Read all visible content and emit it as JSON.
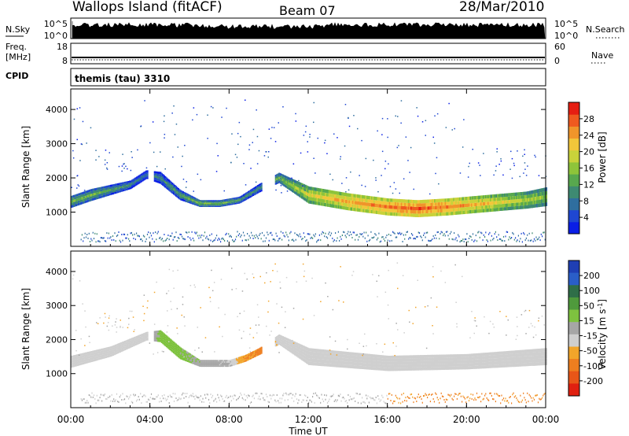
{
  "header": {
    "station": "Wallops Island (fitACF)",
    "beam": "Beam 07",
    "date": "28/Mar/2010"
  },
  "top_panels": {
    "nsky_label": "N.Sky",
    "nsky_ticks": [
      "10^5",
      "10^0"
    ],
    "nsearch_label": "N.Search",
    "nsearch_ticks": [
      "10^5",
      "10^0"
    ],
    "freq_label_1": "Freq.",
    "freq_label_2": "[MHz]",
    "freq_ticks": [
      "18",
      "8"
    ],
    "nave_label": "Nave",
    "nave_ticks": [
      "60",
      "0"
    ],
    "cpid_label": "CPID",
    "cpid_value": "themis (tau) 3310"
  },
  "colors": {
    "power": [
      "#0a1ee6",
      "#1f47d2",
      "#2f6e9f",
      "#3e8a72",
      "#58a84e",
      "#8ec43a",
      "#c9d23a",
      "#f2c63a",
      "#f0952a",
      "#ef5a1f",
      "#e61e12"
    ],
    "velocity": [
      "#1f3fb4",
      "#2a5ec8",
      "#2f6e48",
      "#4f9a3c",
      "#7ec23f",
      "#a6a6a6",
      "#cfcfcf",
      "#f2a52a",
      "#ee7e1f",
      "#e85618",
      "#e02010"
    ]
  },
  "chart_data": [
    {
      "type": "heatmap",
      "name": "power",
      "xlabel": "Time UT",
      "ylabel": "Slant Range [km]",
      "xticks": [
        "00:00",
        "04:00",
        "08:00",
        "12:00",
        "16:00",
        "20:00",
        "00:00"
      ],
      "xlim_hours": [
        0,
        24
      ],
      "ylim": [
        0,
        4600
      ],
      "yticks": [
        1000,
        2000,
        3000,
        4000
      ],
      "colorbar_label": "Power [dB]",
      "colorbar_ticks": [
        "28",
        "24",
        "20",
        "16",
        "12",
        "8",
        "4"
      ],
      "colorbar_range": [
        0,
        32
      ],
      "main_band": [
        {
          "t": 0.0,
          "center": 1300,
          "width": 350,
          "power": 14
        },
        {
          "t": 1.0,
          "center": 1500,
          "width": 350,
          "power": 14
        },
        {
          "t": 2.0,
          "center": 1650,
          "width": 300,
          "power": 12
        },
        {
          "t": 3.0,
          "center": 1800,
          "width": 250,
          "power": 10
        },
        {
          "t": 3.8,
          "center": 2100,
          "width": 250,
          "power": 8
        },
        {
          "t": 4.5,
          "center": 2000,
          "width": 350,
          "power": 10
        },
        {
          "t": 5.5,
          "center": 1500,
          "width": 300,
          "power": 12
        },
        {
          "t": 6.5,
          "center": 1250,
          "width": 200,
          "power": 14
        },
        {
          "t": 7.5,
          "center": 1250,
          "width": 200,
          "power": 14
        },
        {
          "t": 8.5,
          "center": 1350,
          "width": 200,
          "power": 12
        },
        {
          "t": 9.5,
          "center": 1700,
          "width": 250,
          "power": 10
        },
        {
          "t": 10.5,
          "center": 2000,
          "width": 300,
          "power": 14
        },
        {
          "t": 12.0,
          "center": 1500,
          "width": 500,
          "power": 20
        },
        {
          "t": 14.0,
          "center": 1300,
          "width": 500,
          "power": 24
        },
        {
          "t": 16.0,
          "center": 1150,
          "width": 500,
          "power": 26
        },
        {
          "t": 17.5,
          "center": 1100,
          "width": 500,
          "power": 28
        },
        {
          "t": 19.0,
          "center": 1150,
          "width": 500,
          "power": 26
        },
        {
          "t": 21.0,
          "center": 1250,
          "width": 500,
          "power": 22
        },
        {
          "t": 23.0,
          "center": 1350,
          "width": 500,
          "power": 18
        },
        {
          "t": 24.0,
          "center": 1450,
          "width": 550,
          "power": 16
        }
      ]
    },
    {
      "type": "heatmap",
      "name": "velocity",
      "xlabel": "Time UT",
      "ylabel": "Slant Range [km]",
      "xticks": [
        "00:00",
        "04:00",
        "08:00",
        "12:00",
        "16:00",
        "20:00",
        "00:00"
      ],
      "xlim_hours": [
        0,
        24
      ],
      "ylim": [
        0,
        4600
      ],
      "yticks": [
        1000,
        2000,
        3000,
        4000
      ],
      "colorbar_label": "Velocity [m s^-1]",
      "colorbar_ticks": [
        "200",
        "100",
        "50",
        "15",
        "-15",
        "-50",
        "-100",
        "-200"
      ],
      "colorbar_range": [
        -250,
        250
      ],
      "main_band": [
        {
          "t": 0.0,
          "center": 1350,
          "width": 350,
          "velocity": 0
        },
        {
          "t": 2.0,
          "center": 1650,
          "width": 300,
          "velocity": 0
        },
        {
          "t": 3.8,
          "center": 2100,
          "width": 250,
          "velocity": 0
        },
        {
          "t": 4.5,
          "center": 2100,
          "width": 350,
          "velocity": 60
        },
        {
          "t": 5.5,
          "center": 1600,
          "width": 350,
          "velocity": 60
        },
        {
          "t": 6.5,
          "center": 1300,
          "width": 200,
          "velocity": 40
        },
        {
          "t": 8.0,
          "center": 1300,
          "width": 200,
          "velocity": 15
        },
        {
          "t": 8.8,
          "center": 1450,
          "width": 200,
          "velocity": -50
        },
        {
          "t": 9.5,
          "center": 1650,
          "width": 200,
          "velocity": -60
        },
        {
          "t": 10.5,
          "center": 2000,
          "width": 300,
          "velocity": 0
        },
        {
          "t": 12.0,
          "center": 1500,
          "width": 500,
          "velocity": 0
        },
        {
          "t": 16.0,
          "center": 1300,
          "width": 450,
          "velocity": 0
        },
        {
          "t": 20.0,
          "center": 1350,
          "width": 450,
          "velocity": 0
        },
        {
          "t": 24.0,
          "center": 1500,
          "width": 500,
          "velocity": 0
        }
      ]
    }
  ]
}
